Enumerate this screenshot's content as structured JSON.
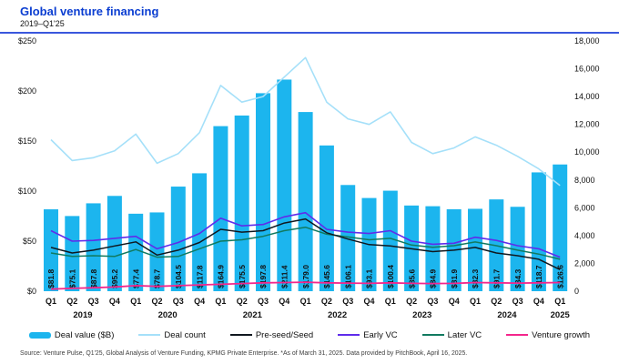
{
  "header": {
    "title": "Global venture financing",
    "subtitle": "2019–Q1'25"
  },
  "source": "Source: Venture Pulse, Q1'25, Global Analysis of Venture Funding, KPMG Private Enterprise. *As of March 31, 2025. Data provided by PitchBook, April 16, 2025.",
  "chart_data": {
    "type": "bar+line combo",
    "title": "Global venture financing",
    "subtitle": "2019–Q1'25",
    "categories": [
      "Q1",
      "Q2",
      "Q3",
      "Q4",
      "Q1",
      "Q2",
      "Q3",
      "Q4",
      "Q1",
      "Q2",
      "Q3",
      "Q4",
      "Q1",
      "Q2",
      "Q3",
      "Q4",
      "Q1",
      "Q2",
      "Q3",
      "Q4",
      "Q1",
      "Q2",
      "Q3",
      "Q4",
      "Q1"
    ],
    "years": [
      {
        "label": "2019",
        "start": 0,
        "count": 4
      },
      {
        "label": "2020",
        "start": 4,
        "count": 4
      },
      {
        "label": "2021",
        "start": 8,
        "count": 4
      },
      {
        "label": "2022",
        "start": 12,
        "count": 4
      },
      {
        "label": "2023",
        "start": 16,
        "count": 4
      },
      {
        "label": "2024",
        "start": 20,
        "count": 4
      },
      {
        "label": "2025",
        "start": 24,
        "count": 1
      }
    ],
    "left_axis": {
      "title": "Deal value ($B)",
      "min": 0,
      "max": 250,
      "step": 50,
      "tick_labels": [
        "$250",
        "$200",
        "$150",
        "$100",
        "$50",
        "$0"
      ]
    },
    "right_axis": {
      "title": "Deal count",
      "min": 0,
      "max": 18000,
      "step": 2000,
      "tick_labels": [
        "18,000",
        "16,000",
        "14,000",
        "12,000",
        "10,000",
        "8,000",
        "6,000",
        "4,000",
        "2,000",
        "0"
      ]
    },
    "grid": false,
    "legend_position": "bottom",
    "bar_series": {
      "name": "Deal value ($B)",
      "axis": "left",
      "color_key": "bar",
      "values": [
        81.8,
        75.1,
        87.8,
        95.2,
        77.4,
        78.7,
        104.5,
        117.8,
        164.9,
        175.5,
        197.8,
        211.4,
        179.0,
        145.6,
        106.1,
        93.1,
        100.4,
        85.6,
        84.9,
        81.9,
        82.3,
        91.7,
        84.3,
        118.7,
        126.6
      ],
      "labels": [
        "$81.8",
        "$75.1",
        "$87.8",
        "$95.2",
        "$77.4",
        "$78.7",
        "$104.5",
        "$117.8",
        "$164.9",
        "$175.5",
        "$197.8",
        "$211.4",
        "$179.0",
        "$145.6",
        "$106.1",
        "$93.1",
        "$100.4",
        "$85.6",
        "$84.9",
        "$81.9",
        "$82.3",
        "$91.7",
        "$84.3",
        "$118.7",
        "$126.6"
      ]
    },
    "line_series": [
      {
        "name": "Deal count",
        "axis": "right",
        "color_key": "deal_count",
        "width": 1.6,
        "values": [
          10900,
          9400,
          9600,
          10100,
          11300,
          9200,
          9900,
          11400,
          14800,
          13600,
          14000,
          15400,
          16800,
          13600,
          12400,
          12000,
          12900,
          10700,
          9900,
          10300,
          11100,
          10500,
          9700,
          8800,
          7600
        ]
      },
      {
        "name": "Later VC",
        "axis": "right",
        "color_key": "later_vc",
        "width": 1.5,
        "values": [
          2750,
          2500,
          2550,
          2500,
          3000,
          2450,
          2500,
          3050,
          3600,
          3700,
          3950,
          4350,
          4600,
          4100,
          3900,
          3700,
          3800,
          3320,
          3160,
          3270,
          3540,
          3270,
          2950,
          2670,
          2300
        ]
      },
      {
        "name": "Pre-seed/Seed",
        "axis": "right",
        "color_key": "preseed_seed",
        "width": 1.5,
        "values": [
          3150,
          2750,
          2950,
          3250,
          3550,
          2600,
          2950,
          3500,
          4450,
          4250,
          4350,
          4900,
          5200,
          4200,
          3750,
          3350,
          3250,
          3050,
          2850,
          2950,
          3150,
          2750,
          2550,
          2300,
          1550
        ]
      },
      {
        "name": "Early VC",
        "axis": "right",
        "color_key": "early_vc",
        "width": 1.6,
        "values": [
          4350,
          3600,
          3650,
          3800,
          3950,
          3050,
          3500,
          4150,
          5250,
          4700,
          4800,
          5350,
          5650,
          4450,
          4250,
          4150,
          4350,
          3600,
          3380,
          3450,
          3880,
          3650,
          3270,
          3050,
          2450
        ]
      },
      {
        "name": "Venture growth",
        "axis": "right",
        "color_key": "venture_growth",
        "width": 1.8,
        "values": [
          150,
          200,
          250,
          300,
          400,
          350,
          400,
          450,
          500,
          550,
          600,
          620,
          650,
          600,
          580,
          560,
          600,
          560,
          550,
          560,
          620,
          600,
          580,
          600,
          620
        ]
      }
    ],
    "colors": {
      "bar": "#1cb5ee",
      "deal_count": "#a5e0f9",
      "preseed_seed": "#10181f",
      "early_vc": "#5f2ceb",
      "later_vc": "#117a60",
      "venture_growth": "#f4268c",
      "title_blue": "#0a3dd1",
      "rule_blue": "#3a57dd"
    },
    "legend": [
      {
        "label": "Deal value ($B)",
        "type": "bar",
        "color_key": "bar"
      },
      {
        "label": "Deal count",
        "type": "line",
        "color_key": "deal_count"
      },
      {
        "label": "Pre-seed/Seed",
        "type": "line",
        "color_key": "preseed_seed"
      },
      {
        "label": "Early VC",
        "type": "line",
        "color_key": "early_vc"
      },
      {
        "label": "Later VC",
        "type": "line",
        "color_key": "later_vc"
      },
      {
        "label": "Venture growth",
        "type": "line",
        "color_key": "venture_growth"
      }
    ]
  }
}
